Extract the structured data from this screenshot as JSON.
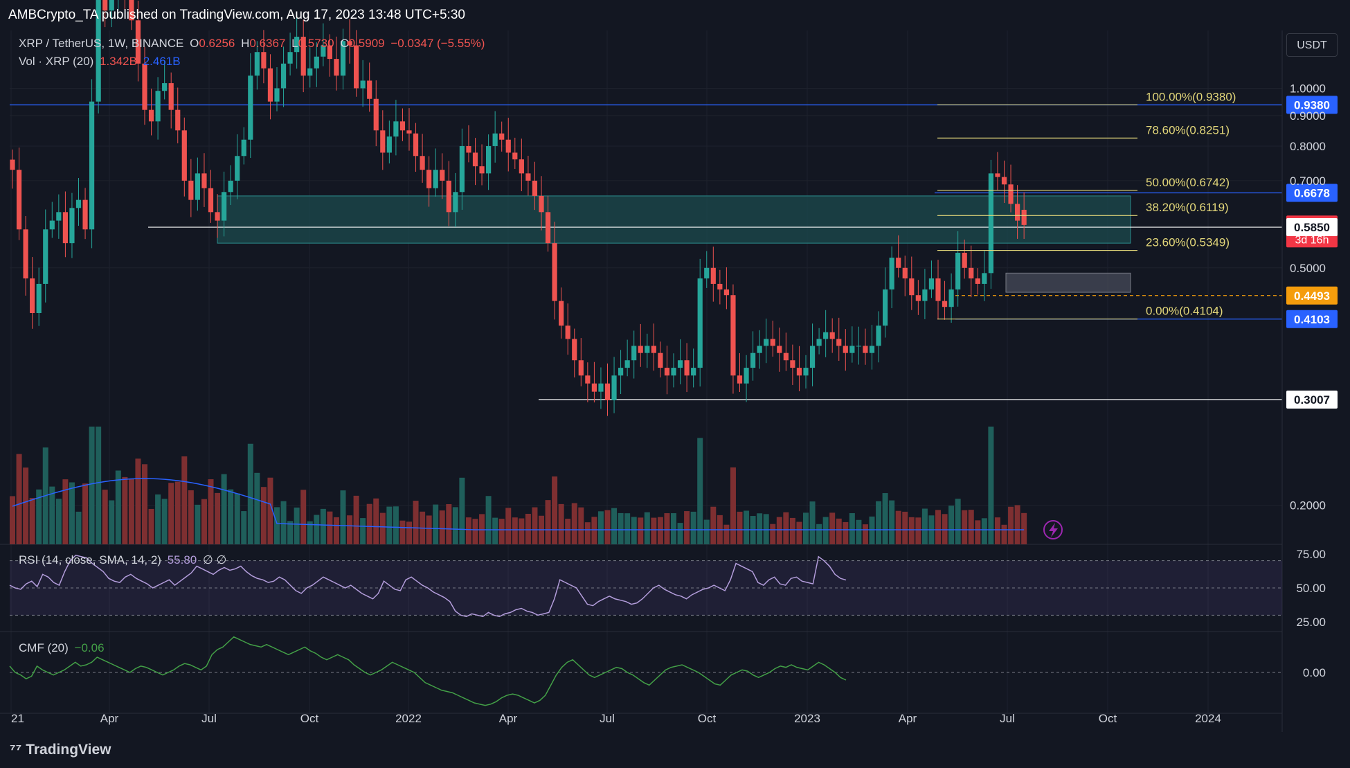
{
  "publish_bar": {
    "text": "AMBCrypto_TA published on TradingView.com, Aug 17, 2023 13:48 UTC+5:30"
  },
  "header": {
    "symbol": "XRP / TetherUS, 1W, BINANCE",
    "o_label": "O",
    "o_value": "0.6256",
    "h_label": "H",
    "h_value": "0.6367",
    "l_label": "L",
    "l_value": "0.5730",
    "c_label": "C",
    "c_value": "0.5909",
    "change": "−0.0347 (−5.55%)",
    "vol_label": "Vol · XRP (20)",
    "vol_value1": "1.342B",
    "vol_value2": "2.461B"
  },
  "currency_button": "USDT",
  "colors": {
    "bg": "#131722",
    "up": "#26a69a",
    "down": "#ef5350",
    "fib": "#e3d77a",
    "blue": "#2962ff",
    "orange": "#f59d0c",
    "rsi": "#b39ddb",
    "cmf": "#43a047",
    "zone": "#1c4b4e",
    "text": "#d1d4dc"
  },
  "chart_data": [
    {
      "type": "candlestick",
      "title": "XRP / TetherUS, 1W, BINANCE",
      "y_scale": "log",
      "ylim": [
        0.172,
        1.25
      ],
      "y_ticks": [
        "1.0000",
        "0.9000",
        "0.8000",
        "0.7000",
        "0.5000",
        "0.2000"
      ],
      "x_ticks": [
        "21",
        "Apr",
        "Jul",
        "Oct",
        "2022",
        "Apr",
        "Jul",
        "Oct",
        "2023",
        "Apr",
        "Jul",
        "Oct",
        "2024"
      ],
      "last_candle": {
        "open": 0.6256,
        "high": 0.6367,
        "low": 0.573,
        "close": 0.5909
      },
      "fibonacci": [
        {
          "label": "100.00%(0.9380)",
          "value": 0.938
        },
        {
          "label": "78.60%(0.8251)",
          "value": 0.8251
        },
        {
          "label": "50.00%(0.6742)",
          "value": 0.6742
        },
        {
          "label": "38.20%(0.6119)",
          "value": 0.6119
        },
        {
          "label": "23.60%(0.5349)",
          "value": 0.5349
        },
        {
          "label": "0.00%(0.4104)",
          "value": 0.4104
        }
      ],
      "price_tags": [
        {
          "label": "0.9380",
          "value": 0.938,
          "color": "#2962ff",
          "sub": ""
        },
        {
          "label": "0.6678",
          "value": 0.6678,
          "color": "#2962ff",
          "sub": ""
        },
        {
          "label": "0.5909",
          "value": 0.5909,
          "color": "#f23645",
          "sub": "3d 16h"
        },
        {
          "label": "0.5850",
          "value": 0.585,
          "color": "#ffffff",
          "sub": ""
        },
        {
          "label": "0.4493",
          "value": 0.4493,
          "color": "#f59d0c",
          "sub": ""
        },
        {
          "label": "0.4103",
          "value": 0.4103,
          "color": "#2962ff",
          "sub": ""
        },
        {
          "label": "0.3007",
          "value": 0.3007,
          "color": "#ffffff",
          "sub": ""
        }
      ],
      "zones": [
        {
          "from": "2021-07",
          "to": "2023-10",
          "low": 0.55,
          "high": 0.66
        },
        {
          "from": "2023-07",
          "to": "2023-10",
          "low": 0.455,
          "high": 0.49
        }
      ],
      "close_series": [
        0.73,
        0.58,
        0.48,
        0.42,
        0.47,
        0.58,
        0.6,
        0.62,
        0.55,
        0.63,
        0.65,
        0.58,
        0.95,
        1.5,
        1.35,
        1.42,
        1.72,
        1.45,
        1.3,
        1.1,
        0.92,
        0.88,
        0.99,
        1.02,
        0.92,
        0.85,
        0.7,
        0.65,
        0.72,
        0.68,
        0.62,
        0.6,
        0.67,
        0.7,
        0.77,
        0.82,
        1.05,
        1.15,
        1.08,
        0.95,
        1.0,
        1.1,
        1.15,
        1.22,
        1.05,
        1.08,
        1.13,
        1.18,
        1.12,
        1.05,
        1.2,
        1.18,
        1.0,
        1.03,
        0.96,
        0.85,
        0.78,
        0.83,
        0.88,
        0.85,
        0.84,
        0.77,
        0.73,
        0.68,
        0.73,
        0.7,
        0.62,
        0.67,
        0.8,
        0.78,
        0.74,
        0.72,
        0.8,
        0.84,
        0.82,
        0.78,
        0.76,
        0.72,
        0.7,
        0.66,
        0.62,
        0.55,
        0.44,
        0.4,
        0.38,
        0.35,
        0.33,
        0.32,
        0.31,
        0.32,
        0.3,
        0.33,
        0.34,
        0.35,
        0.37,
        0.36,
        0.37,
        0.36,
        0.34,
        0.33,
        0.34,
        0.35,
        0.33,
        0.34,
        0.48,
        0.5,
        0.47,
        0.46,
        0.45,
        0.33,
        0.32,
        0.34,
        0.36,
        0.37,
        0.38,
        0.37,
        0.36,
        0.35,
        0.34,
        0.33,
        0.34,
        0.37,
        0.38,
        0.39,
        0.38,
        0.37,
        0.36,
        0.37,
        0.37,
        0.36,
        0.37,
        0.4,
        0.46,
        0.52,
        0.5,
        0.48,
        0.45,
        0.44,
        0.46,
        0.48,
        0.44,
        0.43,
        0.46,
        0.53,
        0.5,
        0.48,
        0.47,
        0.49,
        0.72,
        0.71,
        0.69,
        0.64,
        0.6,
        0.59
      ]
    },
    {
      "type": "bar",
      "title": "Vol · XRP (20)",
      "ma_series": "20-period MA"
    },
    {
      "type": "line",
      "title": "RSI (14, close, SMA, 14, 2)",
      "value_label": "55.80",
      "extra": "∅ ∅",
      "ylim": [
        20,
        80
      ],
      "y_ticks": [
        "75.00",
        "50.00",
        "25.00"
      ],
      "bands": [
        70,
        50,
        30
      ],
      "values": [
        52,
        50,
        49,
        53,
        55,
        51,
        60,
        58,
        54,
        52,
        62,
        70,
        74,
        73,
        72,
        68,
        65,
        62,
        57,
        55,
        54,
        58,
        60,
        57,
        55,
        53,
        50,
        52,
        54,
        56,
        52,
        55,
        58,
        61,
        66,
        64,
        62,
        60,
        63,
        65,
        63,
        64,
        66,
        62,
        59,
        57,
        56,
        54,
        55,
        58,
        56,
        52,
        48,
        46,
        50,
        52,
        55,
        58,
        56,
        54,
        52,
        50,
        52,
        49,
        46,
        44,
        42,
        46,
        55,
        52,
        49,
        48,
        56,
        58,
        55,
        52,
        50,
        47,
        45,
        43,
        40,
        33,
        30,
        29,
        31,
        30,
        29,
        32,
        30,
        29,
        31,
        32,
        34,
        35,
        33,
        32,
        30,
        31,
        32,
        42,
        56,
        54,
        52,
        50,
        44,
        38,
        37,
        40,
        42,
        44,
        42,
        41,
        40,
        38,
        39,
        42,
        46,
        50,
        52,
        49,
        47,
        45,
        44,
        42,
        45,
        47,
        49,
        50,
        52,
        50,
        48,
        56,
        68,
        66,
        64,
        62,
        54,
        52,
        56,
        58,
        53,
        52,
        57,
        58,
        55,
        54,
        53,
        73,
        70,
        66,
        60,
        57,
        55.8
      ]
    },
    {
      "type": "line",
      "title": "CMF (20)",
      "value_label": "−0.06",
      "ylim": [
        -0.3,
        0.3
      ],
      "y_ticks": [
        "0.00"
      ],
      "values": [
        0.05,
        0.0,
        -0.02,
        -0.05,
        -0.03,
        0.05,
        0.02,
        0.0,
        -0.02,
        0.0,
        0.02,
        0.05,
        0.08,
        0.05,
        0.06,
        0.08,
        0.12,
        0.1,
        0.08,
        0.06,
        0.04,
        0.02,
        0.0,
        0.03,
        0.05,
        0.04,
        0.02,
        0.0,
        -0.02,
        0.0,
        0.02,
        0.05,
        0.07,
        0.06,
        0.04,
        0.02,
        0.05,
        0.14,
        0.18,
        0.2,
        0.24,
        0.28,
        0.26,
        0.24,
        0.22,
        0.21,
        0.2,
        0.22,
        0.2,
        0.18,
        0.16,
        0.14,
        0.16,
        0.18,
        0.2,
        0.17,
        0.15,
        0.12,
        0.1,
        0.12,
        0.14,
        0.12,
        0.1,
        0.06,
        0.03,
        0.0,
        -0.02,
        0.0,
        0.02,
        0.05,
        0.08,
        0.06,
        0.04,
        0.02,
        0.0,
        -0.04,
        -0.08,
        -0.1,
        -0.12,
        -0.14,
        -0.15,
        -0.16,
        -0.18,
        -0.2,
        -0.22,
        -0.24,
        -0.25,
        -0.26,
        -0.25,
        -0.23,
        -0.2,
        -0.18,
        -0.17,
        -0.18,
        -0.2,
        -0.22,
        -0.24,
        -0.22,
        -0.18,
        -0.1,
        -0.02,
        0.04,
        0.08,
        0.1,
        0.06,
        0.02,
        -0.02,
        -0.04,
        -0.02,
        0.0,
        0.02,
        0.04,
        0.03,
        0.0,
        -0.02,
        -0.05,
        -0.08,
        -0.1,
        -0.06,
        -0.02,
        0.02,
        0.04,
        0.05,
        0.06,
        0.04,
        0.02,
        0.0,
        -0.03,
        -0.06,
        -0.09,
        -0.1,
        -0.06,
        -0.02,
        0.0,
        0.02,
        0.01,
        -0.02,
        -0.04,
        -0.02,
        0.0,
        0.03,
        0.05,
        0.04,
        0.06,
        0.04,
        0.03,
        0.02,
        0.05,
        0.08,
        0.06,
        0.03,
        0.0,
        -0.04,
        -0.06
      ]
    }
  ]
}
